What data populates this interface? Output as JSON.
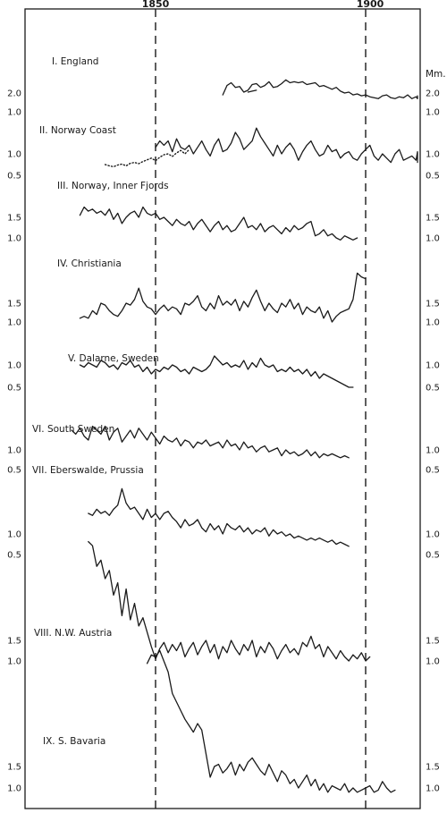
{
  "chart_data": {
    "type": "line",
    "title": "",
    "xlabel": "",
    "ylabel": "",
    "unit_label": "Mm.",
    "x_ticks": [
      1850,
      1900
    ],
    "xlim": [
      1830,
      1916
    ],
    "reference_lines": [
      1850,
      1900
    ],
    "grid": false,
    "series": [
      {
        "name": "I. England",
        "start_year": 1866,
        "values": [
          1.9,
          2.4,
          2.55,
          2.3,
          2.35,
          2.05,
          2.15,
          2.45,
          2.5,
          2.3,
          2.4,
          2.6,
          2.3,
          2.35,
          2.5,
          2.7,
          2.55,
          2.6,
          2.55,
          2.6,
          2.45,
          2.5,
          2.55,
          2.35,
          2.4,
          2.3,
          2.2,
          2.3,
          2.1,
          2.0,
          2.05,
          1.9,
          1.95,
          1.85,
          1.9,
          1.8,
          1.75,
          1.7,
          1.85,
          1.9,
          1.75,
          1.7,
          1.8,
          1.75,
          1.9,
          1.7,
          1.8,
          1.7,
          1.85,
          1.7
        ],
        "extra_segment": {
          "start_year": 1872,
          "values": [
            2.05,
            2.1,
            2.15
          ]
        },
        "right_ticks": [
          "2.0",
          "1.0"
        ],
        "left_ticks": [
          "2.0",
          "1.0"
        ]
      },
      {
        "name": "II. Norway Coast",
        "start_year": 1850,
        "values": [
          1.15,
          1.3,
          1.2,
          1.3,
          1.05,
          1.35,
          1.15,
          1.1,
          1.2,
          1.0,
          1.15,
          1.3,
          1.1,
          0.95,
          1.2,
          1.35,
          1.05,
          1.1,
          1.25,
          1.5,
          1.35,
          1.1,
          1.2,
          1.3,
          1.6,
          1.4,
          1.25,
          1.1,
          0.95,
          1.2,
          1.0,
          1.15,
          1.25,
          1.1,
          0.85,
          1.05,
          1.2,
          1.3,
          1.1,
          0.95,
          1.0,
          1.2,
          1.05,
          1.1,
          0.9,
          1.0,
          1.05,
          0.9,
          0.85,
          1.0,
          1.1,
          1.2,
          0.95,
          0.85,
          1.0,
          0.9,
          0.8,
          1.0,
          1.1,
          0.85,
          0.9,
          0.95,
          0.85,
          1.05,
          0.8,
          0.9,
          1.0,
          0.85
        ],
        "extra_segment": {
          "start_year": 1838,
          "dotted": true,
          "values": [
            0.75,
            0.72,
            0.7,
            0.74,
            0.76,
            0.72,
            0.78,
            0.8,
            0.77,
            0.82,
            0.86,
            0.9,
            0.84,
            0.92,
            0.98,
            1.0,
            0.94,
            1.02,
            1.08,
            1.0,
            1.1
          ]
        },
        "right_ticks": [
          "1.0",
          "0.5"
        ],
        "left_ticks": [
          "1.0",
          "0.5"
        ]
      },
      {
        "name": "III. Norway, Inner Fjords",
        "start_year": 1832,
        "values": [
          1.55,
          1.75,
          1.65,
          1.7,
          1.6,
          1.65,
          1.55,
          1.7,
          1.45,
          1.6,
          1.35,
          1.5,
          1.6,
          1.65,
          1.5,
          1.75,
          1.6,
          1.55,
          1.6,
          1.45,
          1.5,
          1.4,
          1.3,
          1.45,
          1.35,
          1.3,
          1.4,
          1.2,
          1.35,
          1.45,
          1.3,
          1.15,
          1.3,
          1.4,
          1.2,
          1.3,
          1.15,
          1.2,
          1.35,
          1.5,
          1.25,
          1.3,
          1.2,
          1.35,
          1.15,
          1.25,
          1.3,
          1.2,
          1.1,
          1.25,
          1.15,
          1.3,
          1.2,
          1.25,
          1.35,
          1.4,
          1.05,
          1.1,
          1.2,
          1.05,
          1.1,
          1.0,
          0.95,
          1.05,
          1.0,
          0.95,
          1.0
        ],
        "right_ticks": [
          "1.5",
          "1.0"
        ],
        "left_ticks": [
          "1.5",
          "1.0"
        ]
      },
      {
        "name": "IV. Christiania",
        "start_year": 1832,
        "values": [
          1.1,
          1.15,
          1.1,
          1.3,
          1.2,
          1.5,
          1.45,
          1.3,
          1.2,
          1.15,
          1.3,
          1.5,
          1.45,
          1.6,
          1.9,
          1.55,
          1.4,
          1.35,
          1.2,
          1.35,
          1.45,
          1.3,
          1.4,
          1.35,
          1.2,
          1.5,
          1.45,
          1.55,
          1.7,
          1.4,
          1.3,
          1.5,
          1.35,
          1.7,
          1.45,
          1.55,
          1.45,
          1.6,
          1.3,
          1.55,
          1.4,
          1.65,
          1.85,
          1.55,
          1.3,
          1.5,
          1.35,
          1.25,
          1.5,
          1.4,
          1.6,
          1.35,
          1.5,
          1.2,
          1.4,
          1.3,
          1.25,
          1.4,
          1.1,
          1.3,
          1.0,
          1.15,
          1.25,
          1.3,
          1.35,
          1.6,
          2.3,
          2.2,
          2.15
        ],
        "right_ticks": [
          "1.5",
          "1.0"
        ],
        "left_ticks": [
          "1.5",
          "1.0"
        ]
      },
      {
        "name": "V. Dalarne, Sweden",
        "start_year": 1832,
        "values": [
          1.0,
          0.95,
          1.05,
          1.0,
          0.95,
          1.1,
          1.05,
          0.95,
          1.0,
          0.9,
          1.05,
          1.0,
          1.1,
          0.95,
          1.0,
          0.85,
          0.95,
          0.8,
          0.9,
          0.85,
          0.95,
          0.9,
          1.0,
          0.95,
          0.85,
          0.9,
          0.8,
          0.95,
          0.9,
          0.85,
          0.9,
          1.0,
          1.2,
          1.1,
          1.0,
          1.05,
          0.95,
          1.0,
          0.95,
          1.1,
          0.9,
          1.05,
          0.95,
          1.15,
          1.0,
          0.95,
          1.0,
          0.85,
          0.9,
          0.85,
          0.95,
          0.85,
          0.9,
          0.8,
          0.9,
          0.75,
          0.85,
          0.7,
          0.8,
          0.75,
          0.7,
          0.65,
          0.6,
          0.55,
          0.5,
          0.5
        ],
        "right_ticks": [
          "1.0",
          "0.5"
        ],
        "left_ticks": [
          "1.0",
          "0.5"
        ]
      },
      {
        "name": "VI. South Sweden",
        "start_year": 1830,
        "values": [
          1.5,
          1.4,
          1.55,
          1.35,
          1.25,
          1.6,
          1.5,
          1.4,
          1.6,
          1.25,
          1.45,
          1.55,
          1.2,
          1.35,
          1.5,
          1.3,
          1.55,
          1.4,
          1.25,
          1.45,
          1.3,
          1.15,
          1.35,
          1.25,
          1.2,
          1.3,
          1.1,
          1.25,
          1.2,
          1.05,
          1.2,
          1.15,
          1.25,
          1.1,
          1.15,
          1.2,
          1.05,
          1.25,
          1.1,
          1.15,
          1.0,
          1.2,
          1.05,
          1.1,
          0.95,
          1.05,
          1.1,
          0.95,
          1.0,
          1.05,
          0.85,
          1.0,
          0.9,
          0.95,
          0.85,
          0.9,
          1.0,
          0.85,
          0.95,
          0.8,
          0.9,
          0.85,
          0.9,
          0.85,
          0.8,
          0.85,
          0.8
        ],
        "right_ticks": [
          "1.0",
          "0.5"
        ],
        "left_ticks": [
          "1.0",
          "0.5"
        ]
      },
      {
        "name": "VII. Eberswalde, Prussia",
        "start_year": 1834,
        "values": [
          1.5,
          1.45,
          1.6,
          1.5,
          1.55,
          1.45,
          1.6,
          1.7,
          2.1,
          1.75,
          1.6,
          1.65,
          1.5,
          1.35,
          1.6,
          1.4,
          1.5,
          1.35,
          1.5,
          1.55,
          1.4,
          1.3,
          1.15,
          1.35,
          1.2,
          1.25,
          1.35,
          1.15,
          1.05,
          1.25,
          1.1,
          1.2,
          1.0,
          1.25,
          1.15,
          1.1,
          1.2,
          1.05,
          1.15,
          1.0,
          1.1,
          1.05,
          1.15,
          0.95,
          1.1,
          1.0,
          1.05,
          0.95,
          1.0,
          0.9,
          0.95,
          0.9,
          0.85,
          0.9,
          0.85,
          0.9,
          0.85,
          0.8,
          0.85,
          0.75,
          0.8,
          0.75,
          0.7
        ],
        "right_ticks": [
          "1.0",
          "0.5"
        ],
        "left_ticks": [
          "1.0",
          "0.5"
        ]
      },
      {
        "name": "VIII. N.W. Austria",
        "start_year": 1834,
        "values": [
          3.9,
          3.8,
          3.3,
          3.45,
          3.0,
          3.2,
          2.6,
          2.9,
          2.1,
          2.75,
          2.0,
          2.4,
          1.85,
          2.05,
          1.7,
          1.35,
          1.05,
          1.3,
          1.45,
          1.2,
          1.4,
          1.25,
          1.45,
          1.1,
          1.3,
          1.45,
          1.15,
          1.35,
          1.5,
          1.2,
          1.4,
          1.05,
          1.35,
          1.2,
          1.5,
          1.3,
          1.15,
          1.4,
          1.25,
          1.5,
          1.1,
          1.35,
          1.2,
          1.45,
          1.3,
          1.05,
          1.25,
          1.4,
          1.2,
          1.3,
          1.15,
          1.45,
          1.35,
          1.6,
          1.3,
          1.4,
          1.1,
          1.35,
          1.2,
          1.05,
          1.25,
          1.1,
          1.0,
          1.15,
          1.05,
          1.2,
          1.0,
          1.1
        ],
        "right_ticks": [
          "1.5",
          "1.0"
        ],
        "left_ticks": [
          "1.5",
          "1.0"
        ]
      },
      {
        "name": "IX. S. Bavaria",
        "start_year": 1848,
        "values": [
          3.9,
          4.1,
          4.05,
          4.2,
          3.95,
          3.7,
          3.2,
          3.0,
          2.8,
          2.6,
          2.45,
          2.3,
          2.5,
          2.35,
          1.8,
          1.25,
          1.5,
          1.55,
          1.35,
          1.45,
          1.6,
          1.3,
          1.55,
          1.4,
          1.6,
          1.7,
          1.55,
          1.4,
          1.3,
          1.55,
          1.35,
          1.15,
          1.4,
          1.3,
          1.1,
          1.2,
          1.0,
          1.15,
          1.3,
          1.05,
          1.2,
          0.95,
          1.1,
          0.9,
          1.05,
          1.0,
          0.95,
          1.1,
          0.9,
          1.0,
          0.9,
          0.95,
          1.0,
          1.05,
          0.9,
          0.95,
          1.15,
          1.0,
          0.9,
          0.95
        ],
        "right_ticks": [
          "1.5",
          "1.0"
        ],
        "left_ticks": [
          "1.5",
          "1.0"
        ]
      }
    ]
  }
}
